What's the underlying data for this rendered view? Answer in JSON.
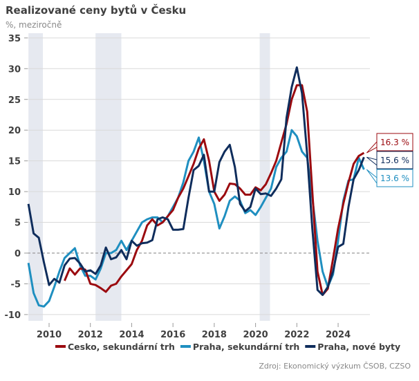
{
  "chart_data": {
    "type": "line",
    "title": "Realizované ceny bytů v Česku",
    "subtitle": "%, meziročně",
    "source": "Zdroj: Ekonomický výzkum ČSOB, CZSO",
    "x_start": 2009.0,
    "x_step": 0.25,
    "xlim": [
      2009.0,
      2025.5
    ],
    "ylim": [
      -10,
      35
    ],
    "y_ticks": [
      -10,
      -5,
      0,
      5,
      10,
      15,
      20,
      25,
      30,
      35
    ],
    "x_ticks": [
      2010,
      2012,
      2014,
      2016,
      2018,
      2020,
      2022,
      2024
    ],
    "grid": true,
    "legend_position": "bottom",
    "shaded_periods": [
      [
        2009.0,
        2009.7
      ],
      [
        2012.25,
        2013.5
      ],
      [
        2020.2,
        2020.7
      ]
    ],
    "series": [
      {
        "name": "Cesko, sekundární trh",
        "color": "#9b0a0f",
        "label": "16.3 %",
        "values": [
          null,
          null,
          null,
          null,
          null,
          null,
          null,
          -4.5,
          -2.5,
          -3.5,
          -2.5,
          -2.7,
          -5,
          -5.2,
          -5.7,
          -6.3,
          -5.3,
          -5,
          -3.8,
          -2.8,
          -1.8,
          0.5,
          2,
          4.5,
          5.5,
          4.5,
          5,
          6,
          7,
          9,
          10.5,
          12.5,
          14.5,
          17,
          18.5,
          15,
          10,
          8.5,
          9.5,
          11.3,
          11.2,
          10.5,
          9.5,
          9.5,
          10.7,
          10.2,
          11.2,
          13,
          15,
          18,
          21,
          25,
          27.3,
          27.3,
          23,
          10,
          -3,
          -6.8,
          -5.8,
          -1,
          4,
          8,
          11.5,
          14.5,
          15.8,
          16.3
        ]
      },
      {
        "name": "Praha, sekundární trh",
        "color": "#1f8fc0",
        "label": "13.6 %",
        "values": [
          -1.6,
          -6.5,
          -8.5,
          -8.7,
          -7.8,
          -5.5,
          -3,
          -0.8,
          0,
          0.8,
          -2,
          -3.7,
          -3.7,
          -4.3,
          -2.5,
          0,
          0,
          0.5,
          2,
          0.5,
          2,
          3.5,
          5,
          5.5,
          5.8,
          5.8,
          5,
          6,
          7.5,
          9,
          11.5,
          15,
          16.5,
          18.8,
          15,
          10,
          8,
          4,
          6,
          8.5,
          9.2,
          8.5,
          6.5,
          7,
          6.2,
          7.5,
          9,
          10.5,
          14,
          15.5,
          16.5,
          20,
          19,
          16.5,
          15.5,
          9,
          2,
          -3,
          -5.5,
          -3.5,
          2,
          8.5,
          11.8,
          12,
          15.5,
          13.6
        ]
      },
      {
        "name": "Praha, nové byty",
        "color": "#0f2d5c",
        "label": "15.6 %",
        "values": [
          8,
          3.2,
          2.5,
          -1.5,
          -5.2,
          -4.2,
          -4.8,
          -2,
          -0.9,
          -0.8,
          -1.7,
          -3,
          -2.8,
          -3.4,
          -2,
          0.9,
          -1,
          -0.7,
          0.5,
          -1,
          2,
          1.2,
          1.6,
          1.7,
          2.1,
          5.5,
          5.8,
          5.5,
          3.8,
          3.8,
          3.9,
          9,
          13.5,
          14.2,
          16,
          10,
          10,
          14.8,
          16.5,
          17.6,
          14,
          8,
          6.8,
          7.5,
          10.5,
          9.6,
          9.7,
          9.3,
          10.5,
          12,
          22,
          27,
          30.2,
          26,
          16,
          4,
          -6,
          -6.8,
          -5.5,
          -3,
          1,
          1.5,
          7.5,
          12,
          13.5,
          15.6
        ]
      }
    ]
  }
}
